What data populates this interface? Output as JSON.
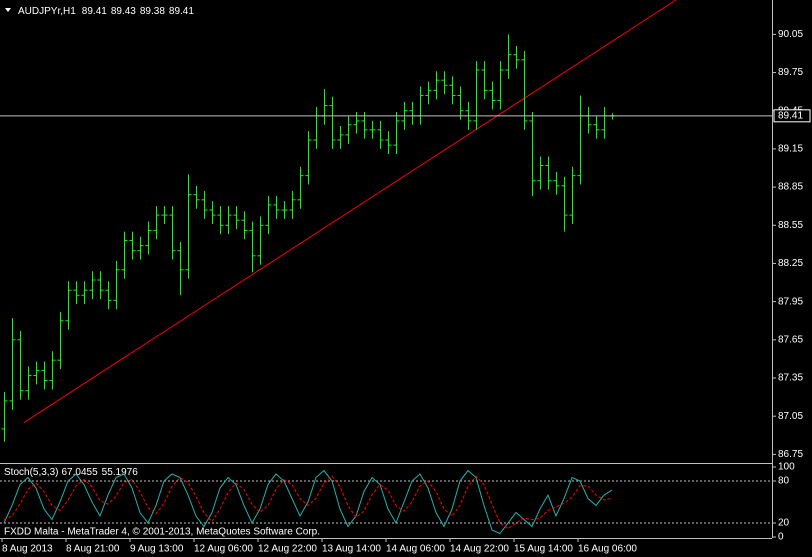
{
  "chart_data": [
    {
      "type": "ohlc",
      "title": "AUDJPYr,H1",
      "color": "#00ff00",
      "categories": [
        "8 Aug 2013",
        null,
        null,
        null,
        null,
        null,
        null,
        null,
        "8 Aug 21:00",
        null,
        null,
        null,
        null,
        null,
        null,
        null,
        "9 Aug 13:00",
        null,
        null,
        null,
        null,
        null,
        null,
        null,
        "12 Aug 06:00",
        null,
        null,
        null,
        null,
        null,
        null,
        null,
        "12 Aug 22:00",
        null,
        null,
        null,
        null,
        null,
        null,
        null,
        "13 Aug 14:00",
        null,
        null,
        null,
        null,
        null,
        null,
        null,
        "14 Aug 06:00",
        null,
        null,
        null,
        null,
        null,
        null,
        null,
        "14 Aug 22:00",
        null,
        null,
        null,
        null,
        null,
        null,
        null,
        "15 Aug 14:00",
        null,
        null,
        null,
        null,
        null,
        null,
        null,
        "16 Aug 06:00",
        null,
        null,
        null,
        null
      ],
      "open": [
        86.95,
        87.17,
        87.65,
        87.25,
        87.37,
        87.41,
        87.33,
        87.49,
        87.8,
        88.04,
        88.0,
        88.04,
        88.12,
        88.04,
        87.96,
        88.2,
        88.43,
        88.35,
        88.39,
        88.51,
        88.63,
        88.63,
        88.35,
        88.2,
        88.79,
        88.75,
        88.67,
        88.63,
        88.55,
        88.63,
        88.59,
        88.51,
        88.31,
        88.55,
        88.71,
        88.67,
        88.67,
        88.75,
        88.94,
        89.22,
        89.41,
        89.49,
        89.22,
        89.26,
        89.34,
        89.37,
        89.3,
        89.3,
        89.22,
        89.18,
        89.37,
        89.45,
        89.41,
        89.57,
        89.61,
        89.69,
        89.65,
        89.57,
        89.45,
        89.37,
        89.77,
        89.61,
        89.53,
        89.77,
        89.89,
        89.85,
        89.37,
        88.9,
        89.02,
        88.9,
        88.86,
        88.63,
        88.94,
        89.41,
        89.34,
        89.3,
        89.41
      ],
      "high": [
        87.24,
        87.82,
        87.72,
        87.44,
        87.48,
        87.48,
        87.56,
        87.87,
        88.11,
        88.11,
        88.11,
        88.19,
        88.19,
        88.11,
        88.27,
        88.5,
        88.5,
        88.46,
        88.58,
        88.7,
        88.7,
        88.7,
        88.42,
        88.95,
        88.86,
        88.82,
        88.74,
        88.7,
        88.7,
        88.7,
        88.66,
        88.58,
        88.62,
        88.78,
        88.78,
        88.74,
        88.82,
        89.01,
        89.29,
        89.48,
        89.62,
        89.56,
        89.33,
        89.41,
        89.44,
        89.44,
        89.37,
        89.37,
        89.29,
        89.44,
        89.52,
        89.52,
        89.64,
        89.68,
        89.76,
        89.76,
        89.72,
        89.64,
        89.52,
        89.84,
        89.84,
        89.68,
        89.84,
        90.05,
        89.96,
        89.92,
        89.44,
        89.09,
        89.09,
        88.97,
        88.93,
        89.01,
        89.57,
        89.48,
        89.41,
        89.48,
        89.43
      ],
      "low": [
        86.85,
        87.1,
        87.18,
        87.18,
        87.3,
        87.26,
        87.26,
        87.42,
        87.73,
        87.93,
        87.93,
        87.97,
        87.97,
        87.89,
        87.89,
        88.13,
        88.28,
        88.28,
        88.32,
        88.44,
        88.56,
        88.28,
        88.0,
        88.13,
        88.68,
        88.6,
        88.56,
        88.48,
        88.48,
        88.52,
        88.44,
        88.18,
        88.24,
        88.48,
        88.6,
        88.6,
        88.6,
        88.68,
        88.87,
        89.15,
        89.34,
        89.15,
        89.15,
        89.19,
        89.27,
        89.23,
        89.23,
        89.15,
        89.11,
        89.11,
        89.3,
        89.34,
        89.34,
        89.5,
        89.54,
        89.58,
        89.5,
        89.38,
        89.3,
        89.3,
        89.54,
        89.46,
        89.46,
        89.7,
        89.78,
        89.3,
        88.78,
        88.83,
        88.83,
        88.79,
        88.5,
        88.56,
        88.87,
        89.27,
        89.23,
        89.23,
        89.38
      ],
      "close": [
        87.17,
        87.65,
        87.25,
        87.37,
        87.41,
        87.33,
        87.49,
        87.8,
        88.04,
        88.0,
        88.04,
        88.12,
        88.04,
        87.96,
        88.2,
        88.43,
        88.35,
        88.39,
        88.51,
        88.63,
        88.63,
        88.35,
        88.2,
        88.79,
        88.75,
        88.67,
        88.63,
        88.55,
        88.63,
        88.59,
        88.51,
        88.31,
        88.55,
        88.71,
        88.67,
        88.67,
        88.75,
        88.94,
        89.22,
        89.41,
        89.49,
        89.22,
        89.26,
        89.34,
        89.37,
        89.3,
        89.3,
        89.22,
        89.18,
        89.37,
        89.45,
        89.41,
        89.57,
        89.61,
        89.69,
        89.65,
        89.57,
        89.45,
        89.37,
        89.77,
        89.61,
        89.53,
        89.77,
        89.89,
        89.85,
        89.37,
        88.9,
        89.02,
        88.9,
        88.86,
        88.63,
        88.94,
        89.41,
        89.34,
        89.3,
        89.41,
        89.41
      ],
      "ylim": [
        86.69,
        90.32
      ],
      "yticks": [
        90.05,
        89.75,
        89.45,
        89.15,
        88.85,
        88.55,
        88.25,
        87.95,
        87.65,
        87.35,
        87.05,
        86.75
      ],
      "current_price": 89.41,
      "trendline": {
        "x": [
          2.5,
          84
        ],
        "y": [
          87.0,
          90.32
        ],
        "color": "#ff0000"
      }
    },
    {
      "type": "line",
      "title": "Stoch(5,3,3)",
      "ylim": [
        -1.4,
        104.3
      ],
      "yticks": [
        0,
        20,
        80,
        100
      ],
      "levels": [
        20,
        80
      ],
      "annotation": "FXDD Malta - MetaTrader 4, © 2001-2013, MetaQuotes Software Corp.",
      "series": [
        {
          "color": "#20b2aa",
          "dashed": false,
          "values": [
            20,
            45,
            75,
            85,
            70,
            40,
            25,
            50,
            80,
            90,
            75,
            50,
            30,
            60,
            85,
            90,
            70,
            35,
            20,
            45,
            80,
            90,
            85,
            60,
            30,
            15,
            35,
            70,
            85,
            75,
            45,
            20,
            40,
            75,
            90,
            80,
            55,
            30,
            50,
            85,
            95,
            80,
            40,
            15,
            30,
            65,
            85,
            75,
            40,
            20,
            50,
            80,
            90,
            70,
            35,
            15,
            40,
            80,
            95,
            85,
            45,
            10,
            5,
            20,
            35,
            25,
            15,
            40,
            60,
            30,
            55,
            85,
            80,
            55,
            45,
            60,
            67.0455
          ]
        },
        {
          "color": "#ff0000",
          "dashed": true,
          "values": [
            25,
            30,
            47,
            68,
            77,
            65,
            45,
            38,
            52,
            73,
            82,
            72,
            52,
            47,
            58,
            78,
            82,
            65,
            42,
            33,
            48,
            72,
            85,
            78,
            58,
            35,
            22,
            40,
            63,
            77,
            68,
            47,
            35,
            45,
            68,
            82,
            75,
            55,
            45,
            55,
            77,
            87,
            72,
            45,
            28,
            37,
            60,
            75,
            67,
            45,
            37,
            50,
            73,
            80,
            65,
            40,
            30,
            45,
            72,
            87,
            75,
            47,
            20,
            12,
            20,
            27,
            25,
            27,
            38,
            43,
            48,
            57,
            73,
            73,
            60,
            53,
            55.1976
          ]
        }
      ]
    }
  ]
}
